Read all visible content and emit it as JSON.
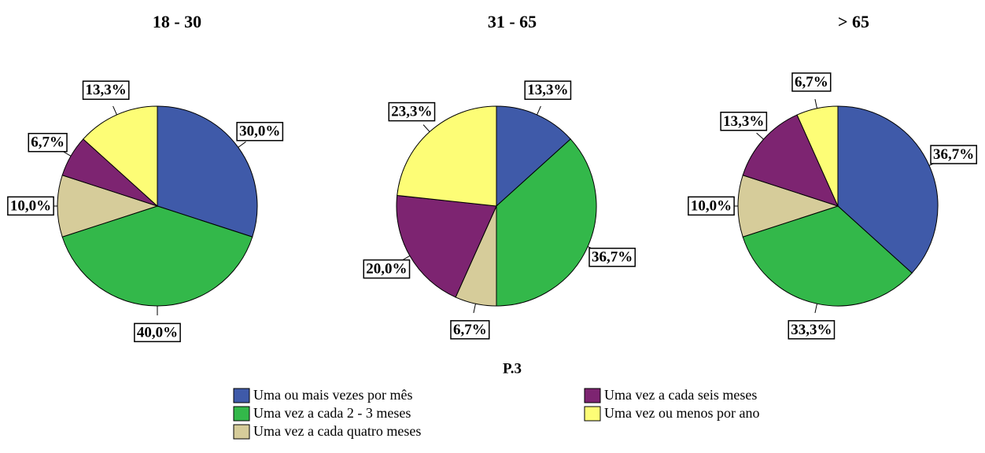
{
  "chart_data": [
    {
      "type": "pie",
      "title": "18 - 30",
      "values": [
        30.0,
        40.0,
        10.0,
        6.7,
        13.3
      ],
      "value_labels": [
        "30,0%",
        "40,0%",
        "10,0%",
        "6,7%",
        "13,3%"
      ]
    },
    {
      "type": "pie",
      "title": "31 - 65",
      "values": [
        13.3,
        36.7,
        6.7,
        20.0,
        23.3
      ],
      "value_labels": [
        "13,3%",
        "36,7%",
        "6,7%",
        "20,0%",
        "23,3%"
      ]
    },
    {
      "type": "pie",
      "title": "> 65",
      "values": [
        36.7,
        33.3,
        10.0,
        13.3,
        6.7
      ],
      "value_labels": [
        "36,7%",
        "33,3%",
        "10,0%",
        "13,3%",
        "6,7%"
      ]
    }
  ],
  "legend": {
    "title": "P.3",
    "labels": [
      "Uma ou mais vezes por mês",
      "Uma vez a cada 2 - 3 meses",
      "Uma vez a cada quatro meses",
      "Uma vez a cada seis meses",
      "Uma vez ou menos por ano"
    ],
    "colors": [
      "#3f5aa9",
      "#33b84a",
      "#d6cc9a",
      "#7d2471",
      "#fdfd76"
    ]
  }
}
